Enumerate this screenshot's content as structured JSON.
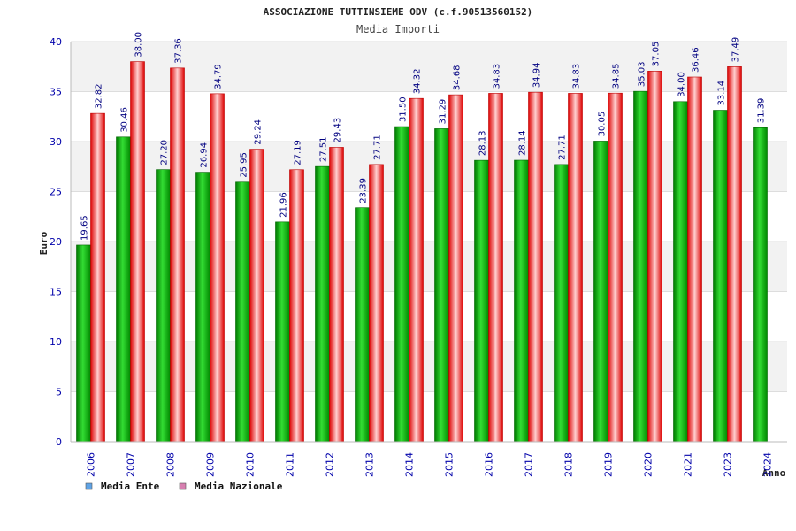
{
  "chart_data": {
    "type": "bar",
    "title": "ASSOCIAZIONE TUTTINSIEME ODV (c.f.90513560152)",
    "subtitle": "Media Importi",
    "ylabel": "Euro",
    "xlabel": "Anno",
    "ylim": [
      0,
      40
    ],
    "yticks": [
      0,
      5,
      10,
      15,
      20,
      25,
      30,
      35,
      40
    ],
    "grid": true,
    "legend_position": "bottom-left",
    "categories": [
      "2006",
      "2007",
      "2008",
      "2009",
      "2010",
      "2011",
      "2012",
      "2013",
      "2014",
      "2015",
      "2016",
      "2017",
      "2018",
      "2019",
      "2020",
      "2021",
      "2023",
      "2024"
    ],
    "series": [
      {
        "name": "Media Ente",
        "color": "#00aa00",
        "legend_color": "#5fa3e6",
        "values": [
          19.65,
          30.46,
          27.2,
          26.94,
          25.95,
          21.96,
          27.51,
          23.39,
          31.5,
          31.29,
          28.13,
          28.14,
          27.71,
          30.05,
          35.03,
          34.0,
          33.14,
          31.39
        ],
        "labels": [
          "19.65",
          "30.46",
          "27.20",
          "26.94",
          "25.95",
          "21.96",
          "27.51",
          "23.39",
          "31.50",
          "31.29",
          "28.13",
          "28.14",
          "27.71",
          "30.05",
          "35.03",
          "34.00",
          "33.14",
          "31.39"
        ]
      },
      {
        "name": "Media Nazionale",
        "color": "#ee1111",
        "legend_color": "#d77fb0",
        "values": [
          32.82,
          38.0,
          37.36,
          34.79,
          29.24,
          27.19,
          29.43,
          27.71,
          34.32,
          34.68,
          34.83,
          34.94,
          34.83,
          34.85,
          37.05,
          36.46,
          37.49,
          null
        ],
        "labels": [
          "32.82",
          "38.00",
          "37.36",
          "34.79",
          "29.24",
          "27.19",
          "29.43",
          "27.71",
          "34.32",
          "34.68",
          "34.83",
          "34.94",
          "34.83",
          "34.85",
          "37.05",
          "36.46",
          "37.49",
          null
        ]
      }
    ]
  }
}
